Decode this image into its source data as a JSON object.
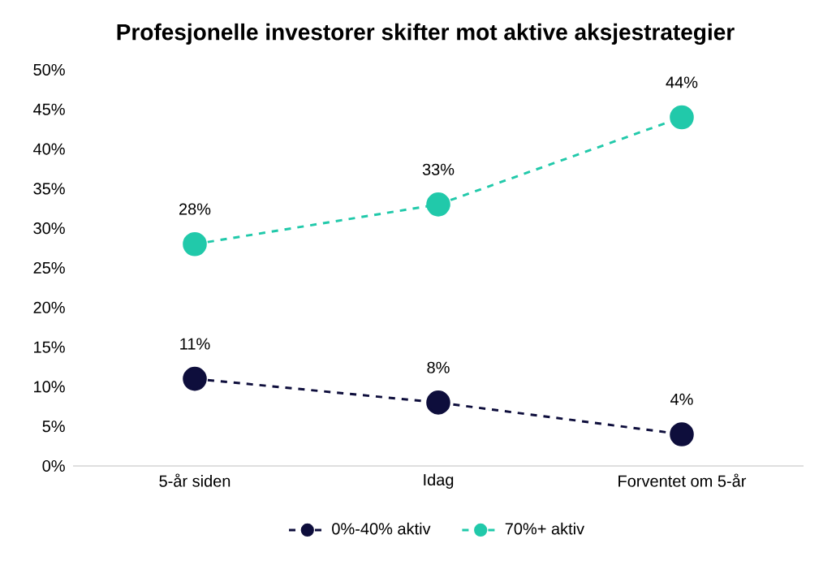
{
  "chart_data": {
    "type": "line",
    "title": "Profesjonelle investorer skifter mot aktive aksjestrategier",
    "categories": [
      "5-år siden",
      "Idag",
      "Forventet om 5-år"
    ],
    "series": [
      {
        "name": "0%-40% aktiv",
        "color": "#0e0e3c",
        "values": [
          11,
          8,
          4
        ],
        "value_labels": [
          "11%",
          "8%",
          "4%"
        ]
      },
      {
        "name": "70%+ aktiv",
        "color": "#21c9aa",
        "values": [
          28,
          33,
          44
        ],
        "value_labels": [
          "28%",
          "33%",
          "44%"
        ]
      }
    ],
    "ylim": [
      0,
      50
    ],
    "yticks": [
      {
        "value": 0,
        "label": "0%"
      },
      {
        "value": 5,
        "label": "5%"
      },
      {
        "value": 10,
        "label": "10%"
      },
      {
        "value": 15,
        "label": "15%"
      },
      {
        "value": 20,
        "label": "20%"
      },
      {
        "value": 25,
        "label": "25%"
      },
      {
        "value": 30,
        "label": "30%"
      },
      {
        "value": 35,
        "label": "35%"
      },
      {
        "value": 40,
        "label": "40%"
      },
      {
        "value": 45,
        "label": "45%"
      },
      {
        "value": 50,
        "label": "50%"
      }
    ],
    "marker": "circle",
    "line_style": "dashed",
    "legend": "bottom"
  }
}
